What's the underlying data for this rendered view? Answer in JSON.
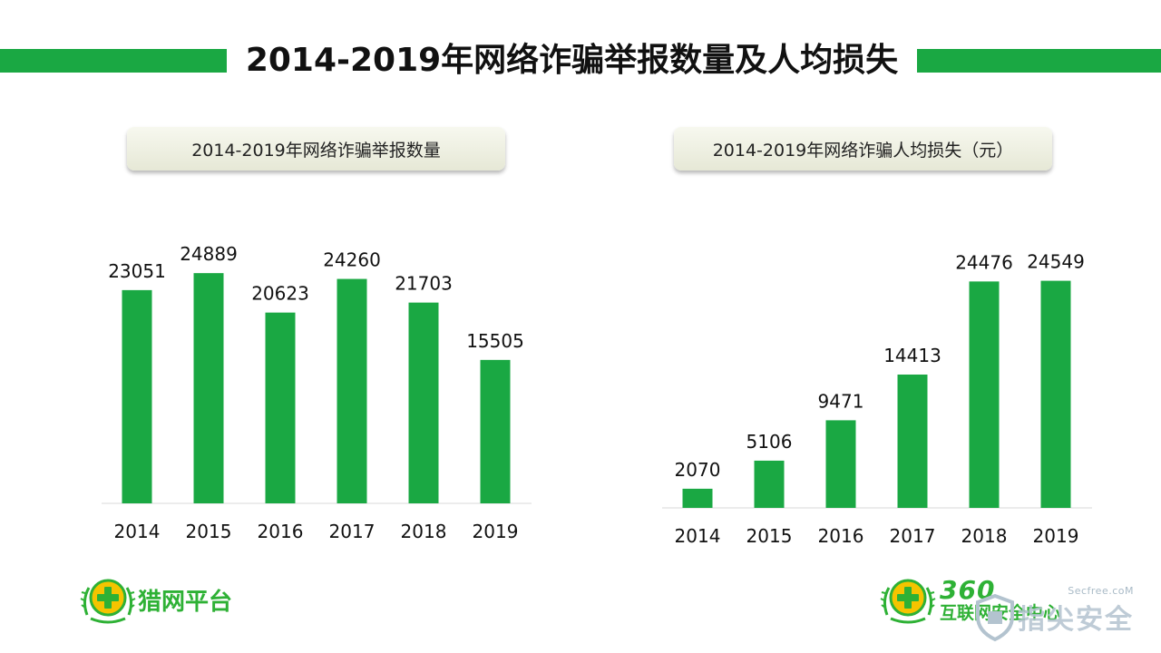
{
  "page": {
    "title": "2014-2019年网络诈骗举报数量及人均损失",
    "accent_color": "#1aa843"
  },
  "chart_data": [
    {
      "type": "bar",
      "title": "2014-2019年网络诈骗举报数量",
      "categories": [
        "2014",
        "2015",
        "2016",
        "2017",
        "2018",
        "2019"
      ],
      "values": [
        23051,
        24889,
        20623,
        24260,
        21703,
        15505
      ],
      "data_labels": [
        "23051",
        "24889",
        "20623",
        "24260",
        "21703",
        "15505"
      ],
      "ylim": [
        0,
        25000
      ],
      "grid": false,
      "legend": "none",
      "bar_color": "#1aa843"
    },
    {
      "type": "bar",
      "title": "2014-2019年网络诈骗人均损失（元）",
      "categories": [
        "2014",
        "2015",
        "2016",
        "2017",
        "2018",
        "2019"
      ],
      "values": [
        2070,
        5106,
        9471,
        14413,
        24476,
        24549
      ],
      "data_labels": [
        "2070",
        "5106",
        "9471",
        "14413",
        "24476",
        "24549"
      ],
      "ylim": [
        0,
        25000
      ],
      "grid": false,
      "legend": "none",
      "bar_color": "#1aa843"
    }
  ],
  "logos": {
    "left": {
      "text": "猎网平台",
      "icon": "cross-emblem-icon"
    },
    "right": {
      "number": "360",
      "text": "互联网安全中心",
      "icon": "cross-emblem-icon"
    }
  },
  "watermark": {
    "url": "Secfree.coM",
    "name": "指尖安全",
    "icon": "shield-icon"
  }
}
